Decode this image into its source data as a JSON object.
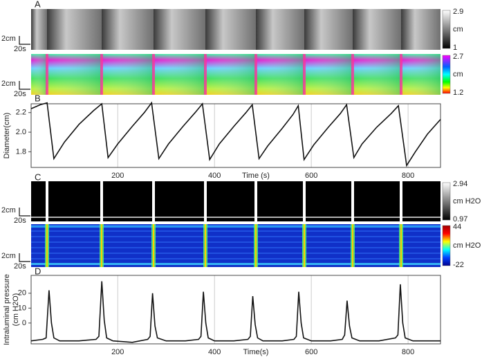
{
  "panel_labels": [
    "A",
    "B",
    "C",
    "D"
  ],
  "strips": [
    {
      "scale_length": "2cm",
      "scale_time": "20s",
      "colorbar": [
        "2.9",
        "cm",
        "1"
      ]
    },
    {
      "scale_length": "2cm",
      "scale_time": "20s",
      "colorbar": [
        "2.7",
        "cm",
        "1.2"
      ]
    },
    {
      "scale_length": "2cm",
      "scale_time": "20s",
      "colorbar": [
        "2.94",
        "cm H2O",
        "0.97"
      ]
    },
    {
      "scale_length": "2cm",
      "scale_time": "20s",
      "colorbar": [
        "44",
        "cm H2O",
        "-22"
      ]
    }
  ],
  "chart_data": [
    {
      "type": "line",
      "ylabel": [
        "Diameter(cm)"
      ],
      "xlabel": "Time (s)",
      "color": "#111",
      "xlim": [
        21,
        867
      ],
      "ylim": [
        1.64,
        2.29
      ],
      "xticks": [
        200,
        400,
        600,
        800
      ],
      "yticks": [
        1.8,
        {
          "value": 2,
          "label": "2.0"
        },
        2.2
      ],
      "grid": true,
      "x": [
        21,
        40,
        54,
        68,
        90,
        120,
        150,
        167,
        180,
        200,
        230,
        255,
        270,
        285,
        305,
        335,
        360,
        375,
        390,
        410,
        440,
        465,
        478,
        492,
        510,
        540,
        562,
        573,
        585,
        605,
        635,
        660,
        673,
        688,
        705,
        735,
        765,
        780,
        797,
        815,
        840,
        867
      ],
      "values": [
        2.24,
        2.28,
        2.3,
        1.73,
        1.9,
        2.08,
        2.22,
        2.29,
        1.74,
        1.88,
        2.06,
        2.2,
        2.3,
        1.73,
        1.88,
        2.06,
        2.2,
        2.29,
        1.72,
        1.88,
        2.06,
        2.2,
        2.28,
        1.73,
        1.86,
        2.04,
        2.18,
        2.27,
        1.72,
        1.87,
        2.05,
        2.19,
        2.28,
        1.74,
        1.88,
        2.05,
        2.19,
        2.27,
        1.66,
        1.8,
        1.98,
        2.13
      ]
    },
    {
      "type": "line",
      "ylabel": [
        "Intraluminal pressure",
        "(cm H2O)"
      ],
      "xlabel": "Time(s)",
      "color": "#111",
      "xlim": [
        21,
        867
      ],
      "ylim": [
        -14,
        32
      ],
      "xticks": [
        200,
        400,
        600,
        800
      ],
      "yticks": [
        0,
        10,
        20
      ],
      "grid": true,
      "x": [
        21,
        45,
        52,
        58,
        63,
        68,
        80,
        120,
        155,
        161,
        167,
        172,
        177,
        190,
        230,
        262,
        267,
        272,
        277,
        282,
        300,
        340,
        367,
        372,
        377,
        382,
        387,
        400,
        440,
        469,
        474,
        479,
        484,
        489,
        500,
        540,
        564,
        569,
        574,
        579,
        584,
        600,
        640,
        664,
        669,
        674,
        679,
        684,
        700,
        740,
        774,
        779,
        784,
        789,
        794,
        810,
        867
      ],
      "values": [
        -12,
        -11,
        -10,
        22,
        0,
        -10,
        -12,
        -12,
        -11,
        -9,
        28,
        2,
        -10,
        -12,
        -13,
        -11,
        -9,
        20,
        -2,
        -10,
        -12,
        -12,
        -11,
        -9,
        21,
        0,
        -10,
        -12,
        -12,
        -11,
        -9,
        18,
        -1,
        -10,
        -12,
        -12,
        -11,
        -9,
        21,
        0,
        -10,
        -12,
        -12,
        -11,
        -8,
        15,
        -2,
        -10,
        -12,
        -12,
        -10,
        -8,
        26,
        0,
        -10,
        -12,
        -12
      ]
    }
  ]
}
